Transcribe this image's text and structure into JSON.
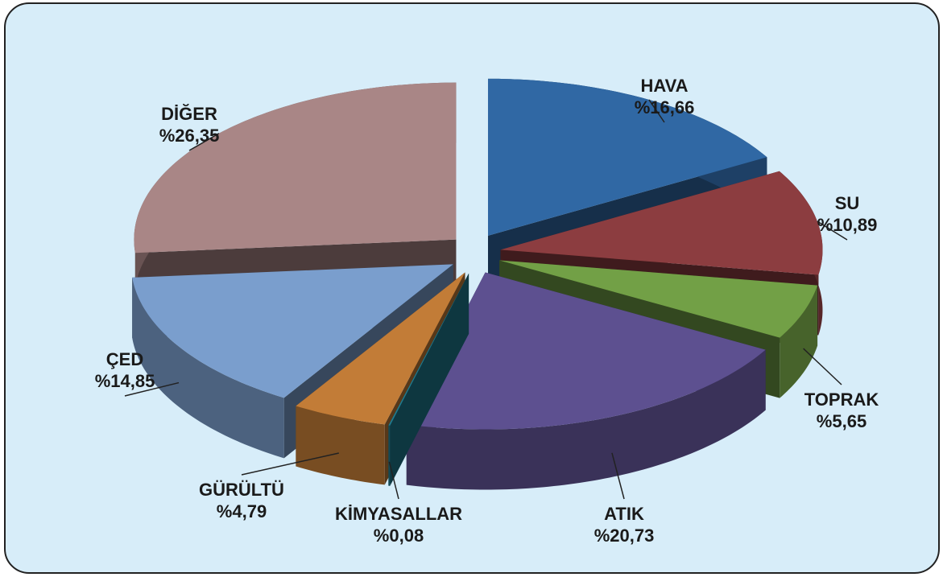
{
  "chart_data": {
    "type": "pie",
    "categories": [
      "HAVA",
      "SU",
      "TOPRAK",
      "ATIK",
      "KİMYASALLAR",
      "GÜRÜLTÜ",
      "ÇED",
      "DİĞER"
    ],
    "values": [
      16.66,
      10.89,
      5.65,
      20.73,
      0.08,
      4.79,
      14.85,
      26.35
    ],
    "value_labels": [
      "%16,66",
      "%10,89",
      "%5,65",
      "%20,73",
      "%0,08",
      "%4,79",
      "%14,85",
      "%26,35"
    ],
    "colors": [
      "#3068a4",
      "#8c3d40",
      "#72a046",
      "#5d5090",
      "#207a8e",
      "#c27c37",
      "#7a9ecd",
      "#a98686"
    ]
  }
}
